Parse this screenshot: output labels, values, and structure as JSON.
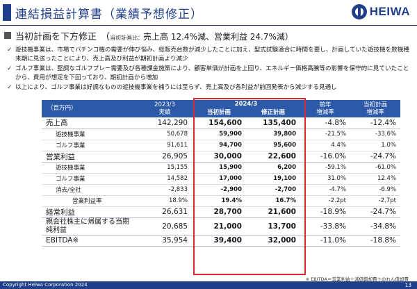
{
  "header": {
    "title": "連結損益計算書（業績予想修正）",
    "logo_text": "HEIWA"
  },
  "subtitle": {
    "main": "当初計画を下方修正",
    "paren_open": "（",
    "paren_small": "当初計画比：",
    "paren_detail": "売上高 12.4%減、営業利益 24.7%減）"
  },
  "bullets": [
    "遊技機事業は、市場でパチンコ機の需要が伸び悩み、総販売台数が減少したことに加え、型式試験適合に時間を要し、計画していた遊技機を数機種来期に見送ったことにより、売上高及び利益が期初計画より減少",
    "ゴルフ事業は、堅調なゴルフプレー需要及び各種課金施策により、顧客単価が計画を上回り、エネルギー価格高騰等の影響を保守的に見ていたことから、費用が想定を下回っており、期初計画から増加",
    "以上により、ゴルフ事業は好調なものの遊技機事業を補うには至らず、売上高及び各利益が前回発表から減少する見通し"
  ],
  "table": {
    "unit": "（百万円）",
    "col_prev_year": "2023/3",
    "col_prev_sub": "実績",
    "col_period": "2024/3",
    "col_initial": "当初計画",
    "col_revised": "修正計画",
    "col_yoy": "前年",
    "col_yoy_sub": "増減率",
    "col_vs_plan": "当初計画",
    "col_vs_plan_sub": "増減率",
    "rows": [
      {
        "label": "売上高",
        "a": "142,290",
        "b": "154,600",
        "c": "135,400",
        "d": "-4.8%",
        "e": "-12.4%"
      },
      {
        "label": "遊技機事業",
        "a": "50,678",
        "b": "59,900",
        "c": "39,800",
        "d": "-21.5%",
        "e": "-33.6%"
      },
      {
        "label": "ゴルフ事業",
        "a": "91,611",
        "b": "94,700",
        "c": "95,600",
        "d": "4.4%",
        "e": "1.0%"
      },
      {
        "label": "営業利益",
        "a": "26,905",
        "b": "30,000",
        "c": "22,600",
        "d": "-16.0%",
        "e": "-24.7%"
      },
      {
        "label": "遊技機事業",
        "a": "15,155",
        "b": "15,900",
        "c": "6,200",
        "d": "-59.1%",
        "e": "-61.0%"
      },
      {
        "label": "ゴルフ事業",
        "a": "14,582",
        "b": "17,000",
        "c": "19,100",
        "d": "31.0%",
        "e": "12.4%"
      },
      {
        "label": "消去/全社",
        "a": "-2,833",
        "b": "-2,900",
        "c": "-2,700",
        "d": "-4.7%",
        "e": "-6.9%"
      },
      {
        "label": "営業利益率",
        "a": "18.9%",
        "b": "19.4%",
        "c": "16.7%",
        "d": "-2.2pt",
        "e": "-2.7pt"
      },
      {
        "label": "経常利益",
        "a": "26,631",
        "b": "28,700",
        "c": "21,600",
        "d": "-18.9%",
        "e": "-24.7%"
      },
      {
        "label": "親会社株主に帰属する当期純利益",
        "a": "20,685",
        "b": "21,000",
        "c": "13,700",
        "d": "-33.8%",
        "e": "-34.8%"
      },
      {
        "label": "EBITDA※",
        "a": "35,954",
        "b": "39,400",
        "c": "32,000",
        "d": "-11.0%",
        "e": "-18.8%"
      }
    ]
  },
  "footnote": "※ EBITDA＝営業利益＋減価償却費＋のれん償却費",
  "footer": {
    "copyright": "Copyright  Heiwa Corporation  2024",
    "page": "13"
  },
  "colors": {
    "brand": "#1f3f8a",
    "table_header": "#2d5aa8",
    "highlight_border": "#d9262c"
  }
}
